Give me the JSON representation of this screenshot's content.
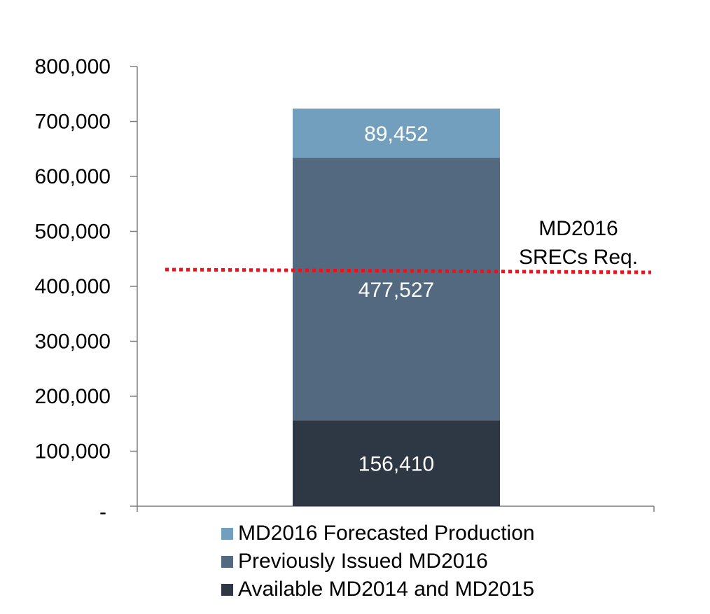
{
  "chart_data": {
    "type": "bar",
    "stacked": true,
    "categories": [
      ""
    ],
    "series": [
      {
        "name": "Available MD2014 and MD2015",
        "values": [
          156410
        ],
        "color": "#2e3744",
        "label": "156,410"
      },
      {
        "name": "Previously Issued MD2016",
        "values": [
          477527
        ],
        "color": "#53697f",
        "label": "477,527"
      },
      {
        "name": "MD2016 Forecasted Production",
        "values": [
          89452
        ],
        "color": "#719fbd",
        "label": "89,452"
      }
    ],
    "ylim": [
      0,
      800000
    ],
    "yticks": [
      0,
      100000,
      200000,
      300000,
      400000,
      500000,
      600000,
      700000,
      800000
    ],
    "ytick_labels": [
      "-",
      "100,000",
      "200,000",
      "300,000",
      "400,000",
      "500,000",
      "600,000",
      "700,000",
      "800,000"
    ],
    "reference_line": {
      "value": 428000,
      "color": "#e8141c",
      "style": "dotted",
      "label_lines": [
        "MD2016",
        "SRECs Req."
      ]
    },
    "grid": false,
    "legend_position": "bottom",
    "title": "",
    "xlabel": "",
    "ylabel": ""
  },
  "legend": {
    "items": [
      {
        "label": "MD2016 Forecasted Production",
        "color": "#719fbd"
      },
      {
        "label": "Previously Issued MD2016",
        "color": "#53697f"
      },
      {
        "label": "Available MD2014 and MD2015",
        "color": "#2e3744"
      }
    ]
  }
}
